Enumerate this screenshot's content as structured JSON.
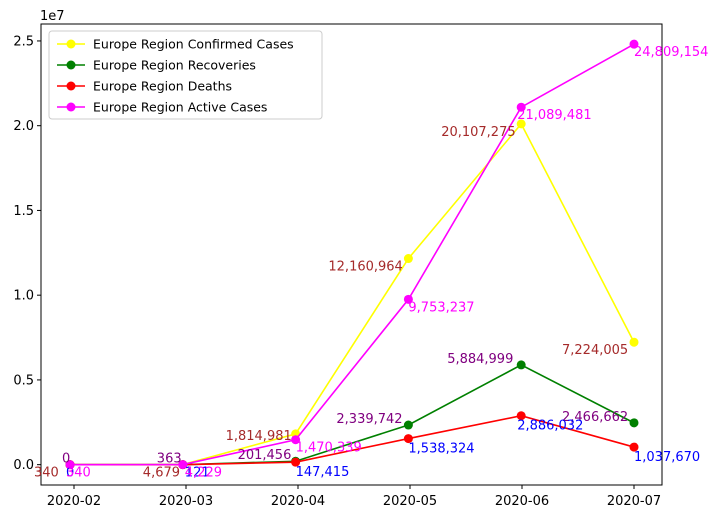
{
  "chart_data": {
    "type": "line",
    "title": "",
    "xlabel": "",
    "ylabel": "",
    "y_offset_text": "1e7",
    "x": [
      "2020-01-31",
      "2020-02-29",
      "2020-03-31",
      "2020-04-30",
      "2020-05-31",
      "2020-06-30"
    ],
    "x_ticks": [
      "2020-02",
      "2020-03",
      "2020-04",
      "2020-05",
      "2020-06",
      "2020-07"
    ],
    "y_ticks": [
      "0.0",
      "0.5",
      "1.0",
      "1.5",
      "2.0",
      "2.5"
    ],
    "ylim": [
      -1200000,
      26000000
    ],
    "grid": false,
    "legend": "upper-left",
    "series": [
      {
        "name": "Europe Region Confirmed Cases",
        "color": "#ffff00",
        "label_color": "#a52a2a",
        "values": [
          340,
          4679,
          1814981,
          12160964,
          20107275,
          7224005
        ],
        "labels": [
          "340",
          "4,679",
          "1,814,981",
          "12,160,964",
          "20,107,275",
          "7,224,005"
        ]
      },
      {
        "name": "Europe Region Recoveries",
        "color": "#008000",
        "label_color": "#800080",
        "values": [
          0,
          363,
          201456,
          2339742,
          5884999,
          2466662
        ],
        "labels": [
          "0",
          "363",
          "201,456",
          "2,339,742",
          "5,884,999",
          "2,466,662"
        ]
      },
      {
        "name": "Europe Region Deaths",
        "color": "#ff0000",
        "label_color": "#0000ff",
        "values": [
          0,
          121,
          147415,
          1538324,
          2886032,
          1037670
        ],
        "labels": [
          "0",
          "121",
          "147,415",
          "1,538,324",
          "2,886,032",
          "1,037,670"
        ]
      },
      {
        "name": "Europe Region Active Cases",
        "color": "#ff00ff",
        "label_color": "#ff00ff",
        "values": [
          340,
          4229,
          1470339,
          9753237,
          21089481,
          24809154
        ],
        "labels": [
          "340",
          "4,229",
          "1,470,339",
          "9,753,237",
          "21,089,481",
          "24,809,154"
        ]
      }
    ]
  }
}
